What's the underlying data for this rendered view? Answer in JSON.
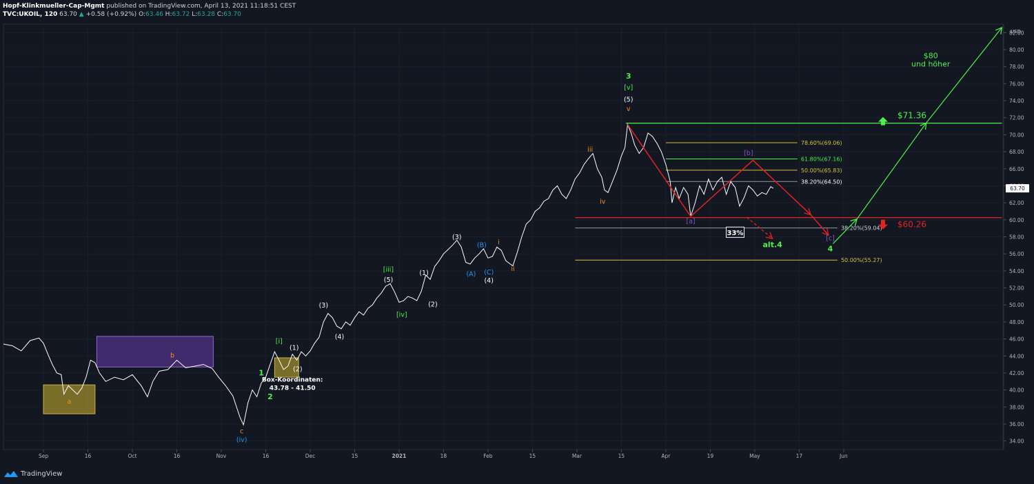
{
  "header": {
    "author": "Hopf-Klinkmueller-Cap-Mgmt",
    "published": "published on TradingView.com, April 13, 2021 11:18:51 CEST",
    "symbol": "TVC:UKOIL, 120",
    "last": "63.70",
    "change": "+0.58 (+0.92%)",
    "ohlc": {
      "o_label": "O:",
      "o": "63.46",
      "h_label": "H:",
      "h": "63.72",
      "l_label": "L:",
      "l": "63.28",
      "c_label": "C:",
      "c": "63.70"
    }
  },
  "footer": {
    "brand": "TradingView"
  },
  "colors": {
    "bg": "#131722",
    "price": "#ffffff",
    "grid": "#1e222d",
    "green": "#4cf04c",
    "red": "#e32222",
    "yellow": "#d4c23a",
    "orange": "#f7931a",
    "purple": "#7e57c2",
    "blue": "#2196f3"
  },
  "chart_data": {
    "type": "line",
    "currency": "USD",
    "y_range": [
      33,
      83
    ],
    "y_ticks": [
      "82.00",
      "80.00",
      "78.00",
      "76.00",
      "74.00",
      "72.00",
      "70.00",
      "68.00",
      "66.00",
      "64.00",
      "62.00",
      "60.00",
      "58.00",
      "56.00",
      "54.00",
      "52.00",
      "50.00",
      "48.00",
      "46.00",
      "44.00",
      "42.00",
      "40.00",
      "38.00",
      "36.00",
      "34.00"
    ],
    "x_ticks": [
      {
        "label": "Sep",
        "x": 0.5
      },
      {
        "label": "16",
        "x": 5.5
      },
      {
        "label": "Oct",
        "x": 10.5
      },
      {
        "label": "16",
        "x": 15.5
      },
      {
        "label": "Nov",
        "x": 20.5
      },
      {
        "label": "16",
        "x": 25.5
      },
      {
        "label": "Dec",
        "x": 30.5
      },
      {
        "label": "15",
        "x": 35.5
      },
      {
        "label": "2021",
        "x": 40.5
      },
      {
        "label": "18",
        "x": 45.5
      },
      {
        "label": "Feb",
        "x": 50.5
      },
      {
        "label": "15",
        "x": 55.5
      },
      {
        "label": "Mar",
        "x": 60.5
      },
      {
        "label": "15",
        "x": 65.5
      },
      {
        "label": "Apr",
        "x": 70.5
      },
      {
        "label": "19",
        "x": 75.5
      },
      {
        "label": "May",
        "x": 80.5
      },
      {
        "label": "17",
        "x": 85.5
      },
      {
        "label": "Jun",
        "x": 90.5
      }
    ],
    "x_range": [
      -4,
      108.5
    ],
    "current_price": "63.70",
    "price_series": [
      [
        -4,
        45.4
      ],
      [
        -3,
        45.2
      ],
      [
        -2,
        44.6
      ],
      [
        -1,
        45.8
      ],
      [
        0,
        46.1
      ],
      [
        0.5,
        45.5
      ],
      [
        1,
        44.2
      ],
      [
        1.5,
        43.0
      ],
      [
        2,
        42.0
      ],
      [
        2.5,
        41.8
      ],
      [
        2.8,
        39.5
      ],
      [
        3.3,
        40.5
      ],
      [
        3.8,
        40.0
      ],
      [
        4.3,
        39.5
      ],
      [
        4.8,
        40.2
      ],
      [
        5.3,
        41.5
      ],
      [
        5.8,
        43.5
      ],
      [
        6.3,
        43.2
      ],
      [
        6.8,
        42.0
      ],
      [
        7.5,
        41.0
      ],
      [
        8.5,
        41.5
      ],
      [
        9.5,
        41.2
      ],
      [
        10.5,
        41.8
      ],
      [
        11.5,
        40.5
      ],
      [
        12.2,
        39.2
      ],
      [
        12.8,
        41.0
      ],
      [
        13.5,
        42.2
      ],
      [
        14.5,
        42.4
      ],
      [
        15.5,
        43.5
      ],
      [
        16.5,
        42.6
      ],
      [
        17.5,
        42.8
      ],
      [
        18.5,
        43.0
      ],
      [
        19.5,
        42.5
      ],
      [
        20.2,
        41.5
      ],
      [
        21,
        40.5
      ],
      [
        21.8,
        39.3
      ],
      [
        22.6,
        36.8
      ],
      [
        23,
        35.9
      ],
      [
        23.5,
        38.5
      ],
      [
        24,
        40.0
      ],
      [
        24.5,
        39.2
      ],
      [
        25,
        40.8
      ],
      [
        25.5,
        41.5
      ],
      [
        26,
        43.0
      ],
      [
        26.5,
        44.5
      ],
      [
        27,
        43.5
      ],
      [
        27.5,
        42.4
      ],
      [
        28,
        42.8
      ],
      [
        28.5,
        44.2
      ],
      [
        29,
        43.5
      ],
      [
        29.5,
        44.5
      ],
      [
        30,
        44.0
      ],
      [
        30.5,
        44.6
      ],
      [
        31,
        45.5
      ],
      [
        31.5,
        46.2
      ],
      [
        32,
        48.0
      ],
      [
        32.5,
        49.0
      ],
      [
        33,
        48.5
      ],
      [
        33.5,
        47.5
      ],
      [
        34,
        47.2
      ],
      [
        34.5,
        48.0
      ],
      [
        35,
        47.6
      ],
      [
        35.5,
        48.5
      ],
      [
        36,
        49.2
      ],
      [
        36.5,
        48.8
      ],
      [
        37,
        49.6
      ],
      [
        37.5,
        50.0
      ],
      [
        38,
        50.8
      ],
      [
        38.5,
        51.4
      ],
      [
        39,
        52.2
      ],
      [
        39.5,
        52.5
      ],
      [
        40,
        51.5
      ],
      [
        40.5,
        50.3
      ],
      [
        41,
        50.5
      ],
      [
        41.5,
        51.0
      ],
      [
        42,
        50.8
      ],
      [
        42.5,
        50.5
      ],
      [
        43,
        51.6
      ],
      [
        43.5,
        53.5
      ],
      [
        44,
        53.0
      ],
      [
        44.5,
        54.5
      ],
      [
        45,
        55.2
      ],
      [
        45.5,
        56.0
      ],
      [
        46,
        56.5
      ],
      [
        46.5,
        57.0
      ],
      [
        47,
        57.6
      ],
      [
        47.5,
        56.8
      ],
      [
        48,
        55.0
      ],
      [
        48.5,
        54.8
      ],
      [
        49,
        55.5
      ],
      [
        49.5,
        56.0
      ],
      [
        50,
        56.6
      ],
      [
        50.5,
        55.5
      ],
      [
        51,
        55.7
      ],
      [
        51.5,
        56.8
      ],
      [
        52,
        56.4
      ],
      [
        52.5,
        55.2
      ],
      [
        53,
        54.8
      ],
      [
        53.3,
        54.6
      ],
      [
        53.8,
        56.2
      ],
      [
        54.3,
        58.0
      ],
      [
        54.8,
        59.5
      ],
      [
        55.3,
        60.0
      ],
      [
        55.8,
        61.0
      ],
      [
        56.3,
        61.4
      ],
      [
        56.8,
        62.2
      ],
      [
        57.3,
        62.5
      ],
      [
        57.8,
        63.5
      ],
      [
        58.3,
        64.0
      ],
      [
        58.8,
        63.0
      ],
      [
        59.3,
        62.5
      ],
      [
        59.8,
        63.5
      ],
      [
        60.3,
        64.8
      ],
      [
        60.8,
        65.5
      ],
      [
        61.3,
        66.5
      ],
      [
        61.8,
        67.2
      ],
      [
        62.3,
        67.8
      ],
      [
        62.8,
        66.0
      ],
      [
        63.3,
        65.0
      ],
      [
        63.6,
        63.5
      ],
      [
        64,
        63.2
      ],
      [
        64.5,
        64.5
      ],
      [
        65,
        65.8
      ],
      [
        65.5,
        67.5
      ],
      [
        65.9,
        68.5
      ],
      [
        66.2,
        71.2
      ],
      [
        66.6,
        70.2
      ],
      [
        67,
        68.8
      ],
      [
        67.5,
        67.8
      ],
      [
        68,
        68.5
      ],
      [
        68.5,
        70.2
      ],
      [
        69,
        69.8
      ],
      [
        69.5,
        69.0
      ],
      [
        70,
        68.0
      ],
      [
        70.5,
        66.5
      ],
      [
        71,
        64.5
      ],
      [
        71.2,
        62.0
      ],
      [
        71.6,
        63.8
      ],
      [
        72,
        62.5
      ],
      [
        72.5,
        63.8
      ],
      [
        73,
        63.0
      ],
      [
        73.3,
        60.4
      ],
      [
        73.8,
        62.0
      ],
      [
        74.3,
        64.0
      ],
      [
        74.8,
        63.0
      ],
      [
        75.3,
        64.8
      ],
      [
        75.8,
        63.5
      ],
      [
        76.3,
        64.5
      ],
      [
        76.8,
        65.0
      ],
      [
        77.3,
        63.0
      ],
      [
        77.8,
        64.5
      ],
      [
        78.3,
        63.8
      ],
      [
        78.8,
        61.6
      ],
      [
        79.3,
        62.6
      ],
      [
        79.8,
        64.0
      ],
      [
        80.3,
        63.5
      ],
      [
        80.8,
        62.8
      ],
      [
        81.3,
        63.2
      ],
      [
        81.8,
        63.0
      ],
      [
        82.3,
        63.9
      ],
      [
        82.6,
        63.7
      ]
    ],
    "levels": [
      {
        "label": "$71.36",
        "value": 71.36,
        "color": "#4cf04c"
      },
      {
        "label": "$60.26",
        "value": 60.26,
        "color": "#e32222"
      }
    ],
    "fibonacci": [
      {
        "label": "78.60%(69.06)",
        "value": 69.06,
        "color": "#d4c23a"
      },
      {
        "label": "61.80%(67.16)",
        "value": 67.16,
        "color": "#4cf04c"
      },
      {
        "label": "50.00%(65.83)",
        "value": 65.83,
        "color": "#d4c23a"
      },
      {
        "label": "38.20%(64.50)",
        "value": 64.5,
        "color": "#9598a1"
      },
      {
        "label": "38.20%(59.04)",
        "value": 59.04,
        "color": "#9598a1"
      },
      {
        "label": "50.00%(55.27)",
        "value": 55.27,
        "color": "#d4c23a"
      }
    ],
    "boxes": [
      {
        "x0": 0.5,
        "x1": 6.3,
        "y0": 37.2,
        "y1": 40.6,
        "fill": "#9e8a2c",
        "opacity": 0.75,
        "stroke": "#c9b44a"
      },
      {
        "x0": 6.5,
        "x1": 19.6,
        "y0": 42.7,
        "y1": 46.3,
        "fill": "#4b2f7e",
        "opacity": 0.8,
        "stroke": "#8c6bd3"
      },
      {
        "x0": 26.5,
        "x1": 29.2,
        "y0": 41.5,
        "y1": 43.78,
        "fill": "#9e8a2c",
        "opacity": 0.75,
        "stroke": "#c9b44a"
      }
    ],
    "box_label": {
      "line1": "Box-Koordinaten:",
      "line2": "43.78 - 41.50",
      "x": 28.5,
      "y1": 41.0,
      "y2": 40.0
    },
    "wave_labels": [
      {
        "text": "a",
        "x": 3.4,
        "y": 38.4,
        "color": "#f7931a"
      },
      {
        "text": "b",
        "x": 15.0,
        "y": 43.8,
        "color": "#f7931a"
      },
      {
        "text": "c",
        "x": 22.8,
        "y": 34.9,
        "color": "#f7931a"
      },
      {
        "text": "(iv)",
        "x": 22.8,
        "y": 33.9,
        "color": "#2196f3"
      },
      {
        "text": "1",
        "x": 25.0,
        "y": 41.7,
        "color": "#4cf04c"
      },
      {
        "text": "2",
        "x": 26.0,
        "y": 38.9,
        "color": "#4cf04c"
      },
      {
        "text": "[i]",
        "x": 27.0,
        "y": 45.5,
        "color": "#4cf04c"
      },
      {
        "text": "(1)",
        "x": 28.7,
        "y": 44.7,
        "color": "#ffffff"
      },
      {
        "text": "(2)",
        "x": 29.1,
        "y": 42.2,
        "color": "#ffffff"
      },
      {
        "text": "(3)",
        "x": 32.0,
        "y": 49.7,
        "color": "#ffffff"
      },
      {
        "text": "(4)",
        "x": 33.8,
        "y": 46.0,
        "color": "#ffffff"
      },
      {
        "text": "[iii]",
        "x": 39.3,
        "y": 53.9,
        "color": "#4cf04c"
      },
      {
        "text": "(5)",
        "x": 39.3,
        "y": 52.7,
        "color": "#ffffff"
      },
      {
        "text": "[iv]",
        "x": 40.8,
        "y": 48.6,
        "color": "#4cf04c"
      },
      {
        "text": "(1)",
        "x": 43.3,
        "y": 53.5,
        "color": "#ffffff"
      },
      {
        "text": "(2)",
        "x": 44.3,
        "y": 49.8,
        "color": "#ffffff"
      },
      {
        "text": "(3)",
        "x": 47.0,
        "y": 57.7,
        "color": "#ffffff"
      },
      {
        "text": "(A)",
        "x": 48.6,
        "y": 53.4,
        "color": "#2196f3"
      },
      {
        "text": "(B)",
        "x": 49.8,
        "y": 56.8,
        "color": "#2196f3"
      },
      {
        "text": "(C)",
        "x": 50.6,
        "y": 53.6,
        "color": "#2196f3"
      },
      {
        "text": "(4)",
        "x": 50.6,
        "y": 52.6,
        "color": "#ffffff"
      },
      {
        "text": "i",
        "x": 51.7,
        "y": 57.1,
        "color": "#f7931a"
      },
      {
        "text": "ii",
        "x": 53.3,
        "y": 54.0,
        "color": "#f7931a"
      },
      {
        "text": "iii",
        "x": 62.0,
        "y": 68.0,
        "color": "#f7931a"
      },
      {
        "text": "iv",
        "x": 63.4,
        "y": 61.9,
        "color": "#f7931a"
      },
      {
        "text": "3",
        "x": 66.3,
        "y": 76.6,
        "color": "#4cf04c"
      },
      {
        "text": "[v]",
        "x": 66.3,
        "y": 75.3,
        "color": "#4cf04c"
      },
      {
        "text": "(5)",
        "x": 66.3,
        "y": 73.9,
        "color": "#ffffff"
      },
      {
        "text": "v",
        "x": 66.3,
        "y": 72.8,
        "color": "#f7931a"
      },
      {
        "text": "[a]",
        "x": 73.3,
        "y": 59.6,
        "color": "#7e57c2"
      },
      {
        "text": "[b]",
        "x": 79.8,
        "y": 67.6,
        "color": "#7e57c2"
      },
      {
        "text": "[c]",
        "x": 89.0,
        "y": 57.6,
        "color": "#7e57c2"
      },
      {
        "text": "4",
        "x": 89.0,
        "y": 56.3,
        "color": "#4cf04c"
      },
      {
        "text": "alt.4",
        "x": 82.5,
        "y": 56.8,
        "color": "#4cf04c"
      }
    ],
    "badge": {
      "text": "33%",
      "x": 78.3,
      "y": 58.5
    },
    "target_text": {
      "line1": "$80",
      "line2": "und höher",
      "x": 100.3,
      "y1": 79.0,
      "y2": 78.0
    },
    "red_path": [
      [
        66.2,
        71.2
      ],
      [
        73.3,
        60.4
      ],
      [
        80.3,
        67.0
      ],
      [
        86.8,
        60.6
      ],
      [
        88.8,
        58.2
      ]
    ],
    "red_dashed": [
      [
        79.6,
        60.3
      ],
      [
        82.5,
        57.8
      ]
    ],
    "green_path": [
      [
        89.3,
        57.2
      ],
      [
        92.0,
        60.1
      ],
      [
        99.8,
        71.4
      ],
      [
        108.3,
        82.6
      ]
    ]
  }
}
